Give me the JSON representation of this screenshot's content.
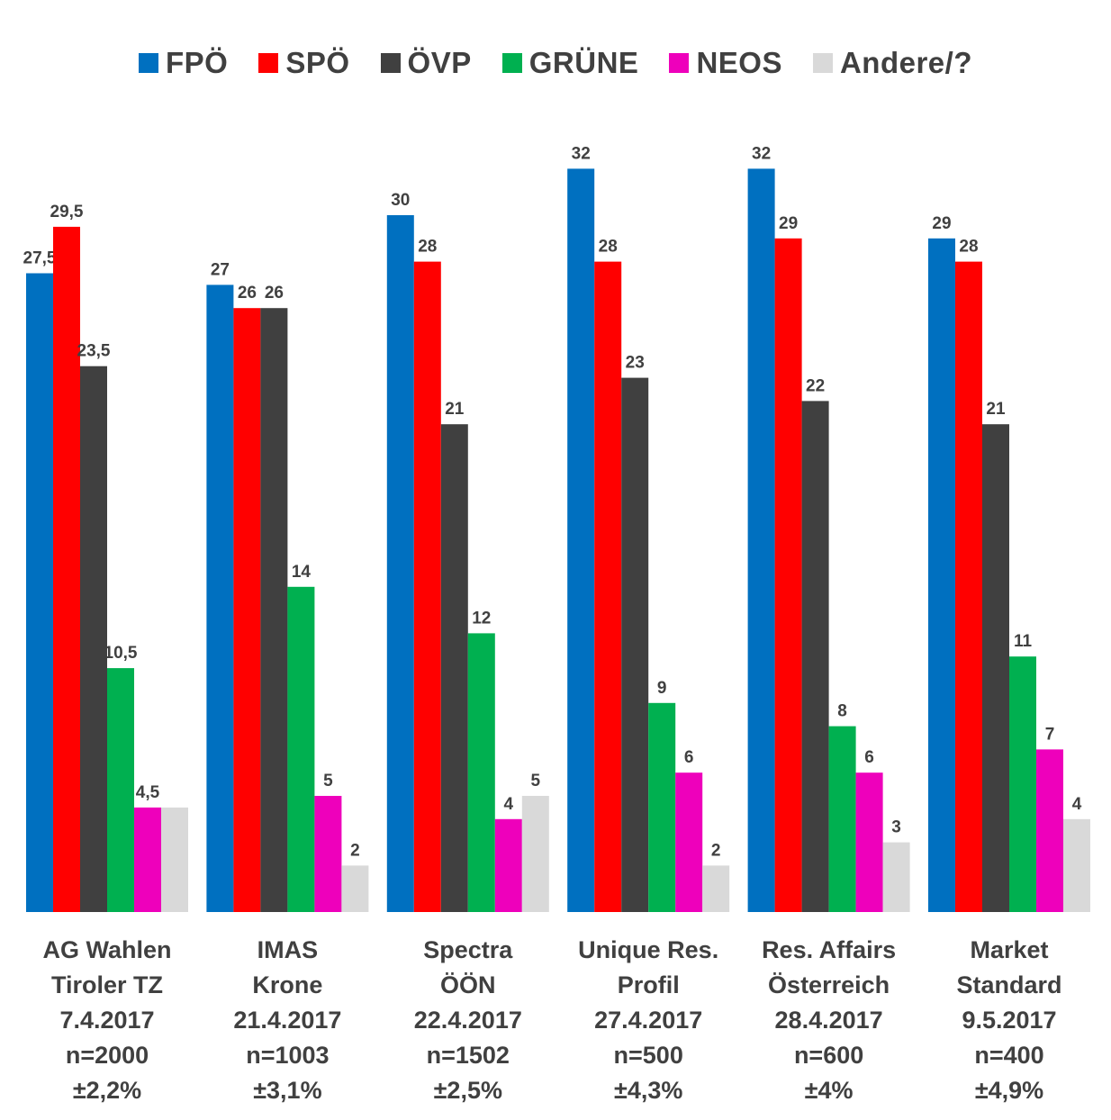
{
  "chart_data": {
    "type": "bar",
    "title": "",
    "xlabel": "",
    "ylabel": "",
    "ylim": [
      0,
      32
    ],
    "grid": false,
    "legend_position": "top",
    "categories": [
      [
        "AG Wahlen",
        "Tiroler TZ",
        "7.4.2017",
        "n=2000",
        "±2,2%"
      ],
      [
        "IMAS",
        "Krone",
        "21.4.2017",
        "n=1003",
        "±3,1%"
      ],
      [
        "Spectra",
        "ÖÖN",
        "22.4.2017",
        "n=1502",
        "±2,5%"
      ],
      [
        "Unique Res.",
        "Profil",
        "27.4.2017",
        "n=500",
        "±4,3%"
      ],
      [
        "Res. Affairs",
        "Österreich",
        "28.4.2017",
        "n=600",
        "±4%"
      ],
      [
        "Market",
        "Standard",
        "9.5.2017",
        "n=400",
        "±4,9%"
      ]
    ],
    "series": [
      {
        "name": "FPÖ",
        "color": "#0070C0",
        "values": [
          27.5,
          27,
          30,
          32,
          32,
          29
        ],
        "labels": [
          "27,5",
          "27",
          "30",
          "32",
          "32",
          "29"
        ]
      },
      {
        "name": "SPÖ",
        "color": "#FF0000",
        "values": [
          29.5,
          26,
          28,
          28,
          29,
          28
        ],
        "labels": [
          "29,5",
          "26",
          "28",
          "28",
          "29",
          "28"
        ]
      },
      {
        "name": "ÖVP",
        "color": "#404040",
        "values": [
          23.5,
          26,
          21,
          23,
          22,
          21
        ],
        "labels": [
          "23,5",
          "26",
          "21",
          "23",
          "22",
          "21"
        ]
      },
      {
        "name": "GRÜNE",
        "color": "#00B050",
        "values": [
          10.5,
          14,
          12,
          9,
          8,
          11
        ],
        "labels": [
          "10,5",
          "14",
          "12",
          "9",
          "8",
          "11"
        ]
      },
      {
        "name": "NEOS",
        "color": "#EE00BB",
        "values": [
          4.5,
          5,
          4,
          6,
          6,
          7
        ],
        "labels": [
          "4,5",
          "5",
          "4",
          "6",
          "6",
          "7"
        ]
      },
      {
        "name": "Andere/?",
        "color": "#D9D9D9",
        "values": [
          4.5,
          2,
          5,
          2,
          3,
          4
        ],
        "labels": [
          "",
          "2",
          "5",
          "2",
          "3",
          "4"
        ]
      }
    ]
  }
}
